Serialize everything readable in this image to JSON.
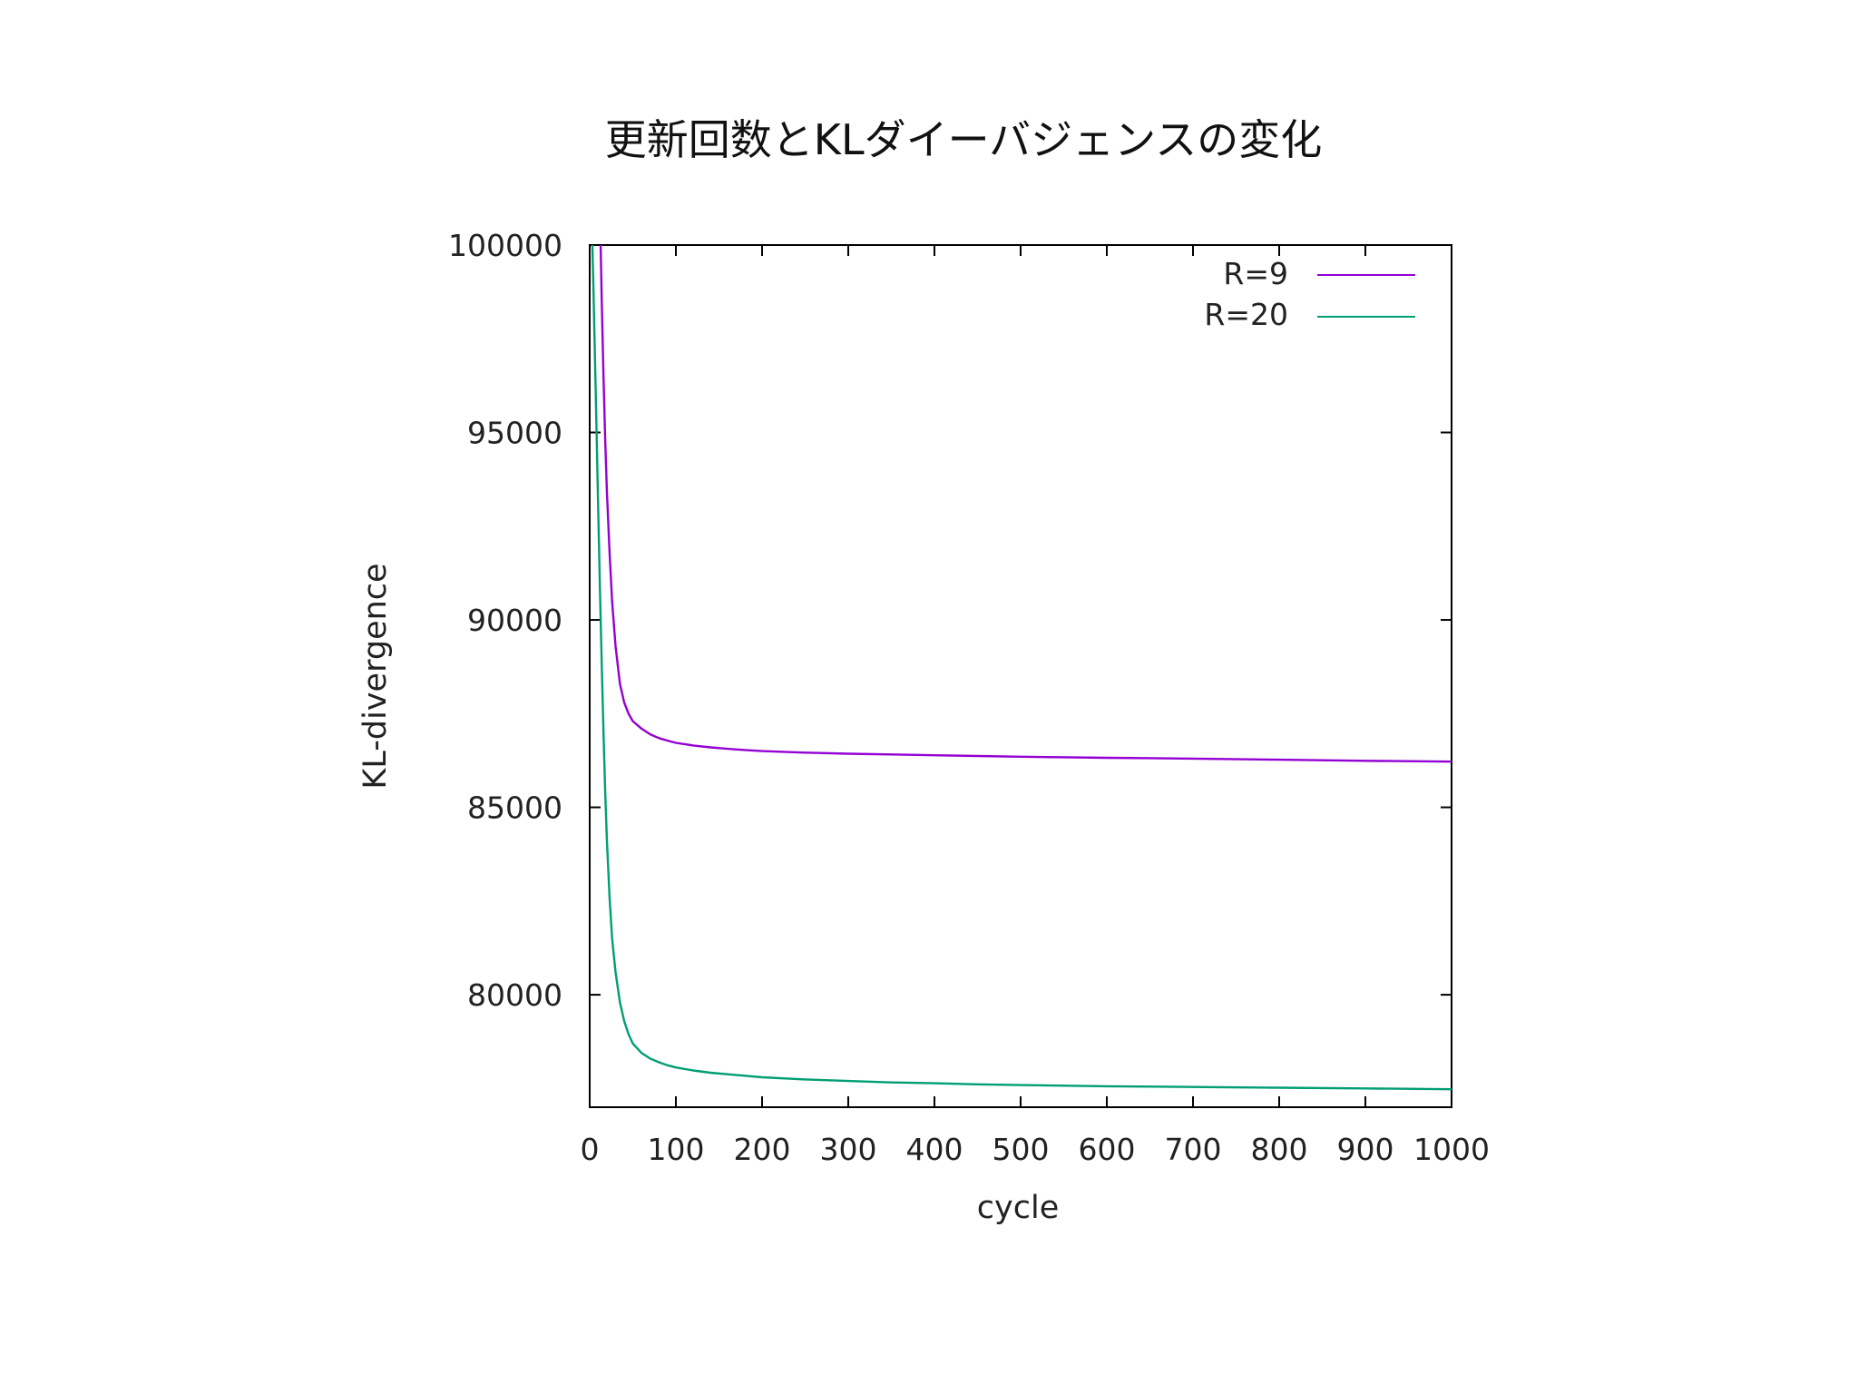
{
  "chart_data": {
    "type": "line",
    "title": "更新回数とKLダイーバジェンスの変化",
    "xlabel": "cycle",
    "ylabel": "KL-divergence",
    "xlim": [
      0,
      1000
    ],
    "ylim": [
      77000,
      100000
    ],
    "x_ticks": [
      0,
      100,
      200,
      300,
      400,
      500,
      600,
      700,
      800,
      900,
      1000
    ],
    "x_tick_labels": [
      "0",
      "100",
      "200",
      "300",
      "400",
      "500",
      "600",
      "700",
      "800",
      "900",
      "1000"
    ],
    "y_ticks": [
      80000,
      85000,
      90000,
      95000,
      100000
    ],
    "y_tick_labels": [
      "80000",
      "85000",
      "90000",
      "95000",
      "100000"
    ],
    "grid": false,
    "legend_position": "top-right",
    "series": [
      {
        "name": "R=9",
        "color": "#9400d3",
        "x": [
          10,
          12,
          14,
          16,
          18,
          20,
          23,
          26,
          30,
          35,
          40,
          45,
          50,
          60,
          70,
          80,
          90,
          100,
          120,
          140,
          160,
          180,
          200,
          250,
          300,
          350,
          400,
          450,
          500,
          600,
          700,
          800,
          900,
          1000
        ],
        "y": [
          104000,
          100800,
          98500,
          96500,
          94800,
          93400,
          91800,
          90500,
          89300,
          88300,
          87800,
          87500,
          87300,
          87100,
          86950,
          86850,
          86780,
          86720,
          86650,
          86600,
          86560,
          86530,
          86500,
          86460,
          86430,
          86410,
          86390,
          86370,
          86350,
          86320,
          86300,
          86270,
          86240,
          86220
        ]
      },
      {
        "name": "R=20",
        "color": "#009e73",
        "x": [
          2,
          4,
          6,
          8,
          10,
          12,
          14,
          16,
          18,
          20,
          23,
          26,
          30,
          35,
          40,
          45,
          50,
          60,
          70,
          80,
          90,
          100,
          120,
          140,
          160,
          180,
          200,
          250,
          300,
          350,
          400,
          450,
          500,
          600,
          700,
          800,
          900,
          1000
        ],
        "y": [
          101000,
          99200,
          97100,
          95000,
          92800,
          90700,
          88800,
          87000,
          85400,
          84100,
          82600,
          81500,
          80600,
          79800,
          79300,
          78950,
          78700,
          78450,
          78300,
          78200,
          78120,
          78060,
          77980,
          77920,
          77880,
          77840,
          77800,
          77740,
          77700,
          77660,
          77640,
          77610,
          77590,
          77560,
          77540,
          77520,
          77500,
          77480
        ]
      }
    ]
  }
}
